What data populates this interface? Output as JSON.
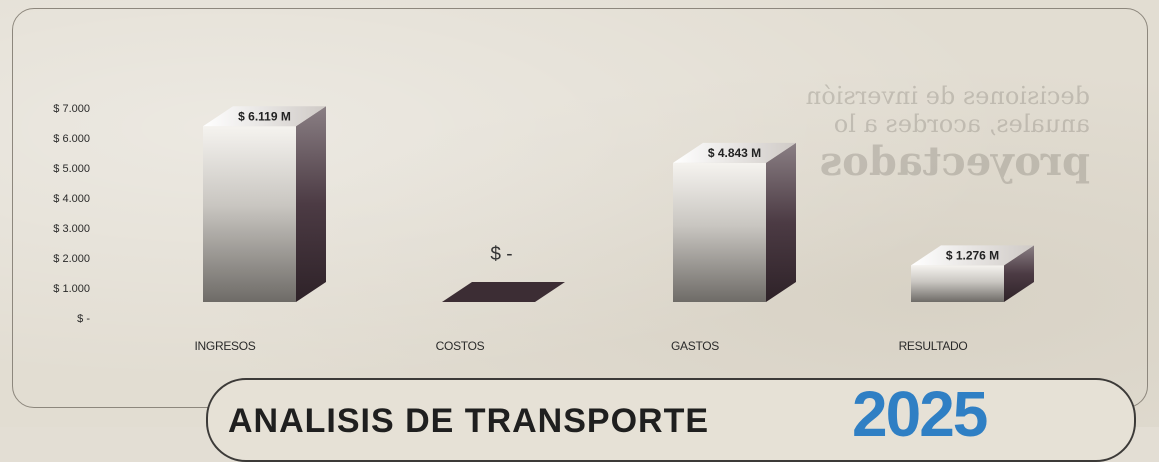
{
  "chart_data": {
    "type": "bar",
    "title": "",
    "xlabel": "",
    "ylabel": "",
    "categories": [
      "INGRESOS",
      "COSTOS",
      "GASTOS",
      "RESULTADO"
    ],
    "values": [
      6119,
      0,
      4843,
      1276
    ],
    "data_labels": [
      "$ 6.119 M",
      "$ -",
      "$ 4.843 M",
      "$ 1.276 M"
    ],
    "y_tick_labels": [
      "$ 7.000",
      "$ 6.000",
      "$ 5.000",
      "$ 4.000",
      "$ 3.000",
      "$ 2.000",
      "$ 1.000",
      "$ -"
    ],
    "ylim": [
      0,
      7000
    ],
    "grid": false,
    "legend": "none",
    "style": "3d-column"
  },
  "banner": {
    "title": "ANALISIS DE TRANSPORTE",
    "year": "2025",
    "year_color": "#2f7fc4"
  },
  "colors": {
    "bar_face_light": "#f4f2ee",
    "bar_face_dark": "#6a6763",
    "bar_side": "#3b2c34",
    "background": "#e2ddd2"
  }
}
